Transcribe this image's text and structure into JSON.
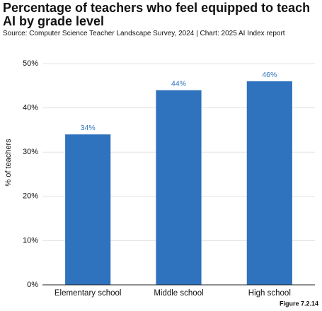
{
  "chart_data": {
    "type": "bar",
    "title": "Percentage of teachers who feel equipped to teach AI by grade level",
    "subtitle": "Source: Computer Science Teacher Landscape Survey, 2024 | Chart: 2025 AI Index report",
    "y_label": "% of teachers",
    "figure_label": "Figure 7.2.14",
    "categories": [
      "Elementary school",
      "Middle school",
      "High school"
    ],
    "values": [
      34,
      44,
      46
    ],
    "value_labels": [
      "34%",
      "44%",
      "46%"
    ],
    "color": "#2f72bd",
    "ylim": [
      0,
      50
    ],
    "yticks": [
      {
        "value": 0,
        "label": "0%"
      },
      {
        "value": 10,
        "label": "10%"
      },
      {
        "value": 20,
        "label": "20%"
      },
      {
        "value": 30,
        "label": "30%"
      },
      {
        "value": 40,
        "label": "40%"
      },
      {
        "value": 50,
        "label": "50%"
      }
    ],
    "grid": true
  }
}
